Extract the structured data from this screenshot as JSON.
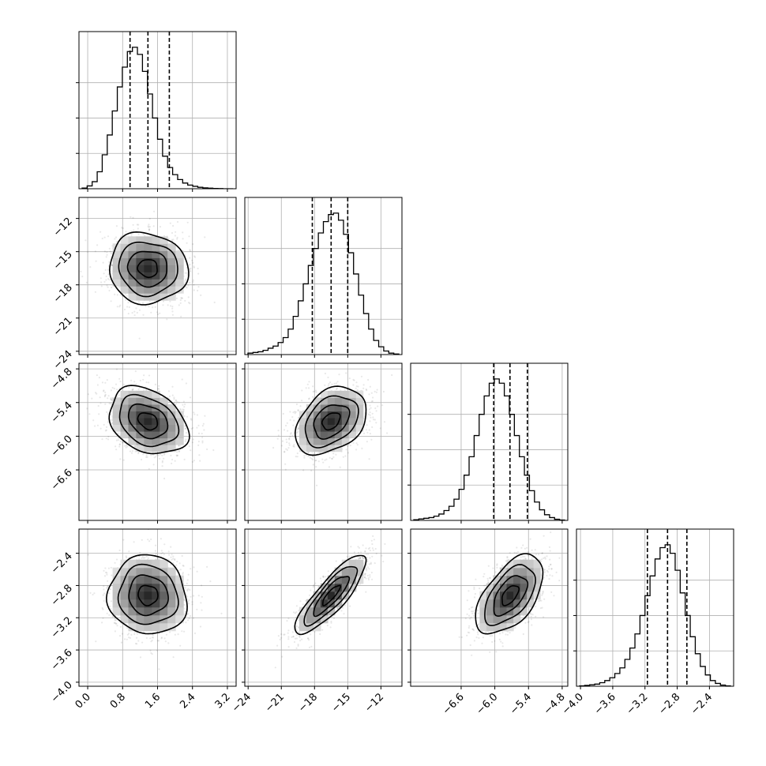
{
  "chart_data": {
    "type": "corner",
    "title": "",
    "parameter_labels": [
      "",
      "",
      "",
      ""
    ],
    "grid": true,
    "quantile_lines": "dashed",
    "parameters": [
      {
        "range": [
          -0.2,
          3.4
        ],
        "ticks": [
          "0.0",
          "0.8",
          "1.6",
          "2.4",
          "3.2"
        ],
        "tick_values": [
          0.0,
          0.8,
          1.6,
          2.4,
          3.2
        ],
        "quantiles": [
          0.97,
          1.38,
          1.87
        ],
        "histogram": [
          0.005,
          0.02,
          0.05,
          0.12,
          0.24,
          0.38,
          0.55,
          0.72,
          0.86,
          0.97,
          1.0,
          0.95,
          0.83,
          0.67,
          0.5,
          0.35,
          0.23,
          0.15,
          0.1,
          0.065,
          0.04,
          0.026,
          0.017,
          0.01,
          0.006,
          0.004,
          0.002,
          0.001,
          0.0,
          0.0
        ]
      },
      {
        "range": [
          -24.3,
          -10.1
        ],
        "ticks": [
          "-24",
          "-21",
          "-18",
          "-15",
          "-12"
        ],
        "tick_values": [
          -24,
          -21,
          -18,
          -15,
          -12
        ],
        "quantiles": [
          -18.2,
          -16.5,
          -15.0
        ],
        "histogram": [
          0.01,
          0.015,
          0.02,
          0.03,
          0.045,
          0.06,
          0.085,
          0.12,
          0.18,
          0.27,
          0.38,
          0.5,
          0.63,
          0.75,
          0.86,
          0.94,
          0.99,
          1.0,
          0.95,
          0.85,
          0.72,
          0.57,
          0.42,
          0.29,
          0.18,
          0.1,
          0.055,
          0.025,
          0.01,
          0.004
        ]
      },
      {
        "range": [
          -7.5,
          -4.7
        ],
        "ticks": [
          "-6.6",
          "-6.0",
          "-5.4",
          "-4.8"
        ],
        "tick_values": [
          -6.6,
          -6.0,
          -5.4,
          -4.8
        ],
        "quantiles": [
          -6.02,
          -5.73,
          -5.42
        ],
        "histogram": [
          0.005,
          0.01,
          0.015,
          0.02,
          0.03,
          0.045,
          0.07,
          0.1,
          0.15,
          0.22,
          0.32,
          0.45,
          0.6,
          0.75,
          0.88,
          0.97,
          1.0,
          0.97,
          0.88,
          0.75,
          0.6,
          0.45,
          0.32,
          0.21,
          0.13,
          0.075,
          0.04,
          0.02,
          0.008,
          0.003
        ]
      },
      {
        "range": [
          -4.05,
          -2.1
        ],
        "ticks": [
          "-4.0",
          "-3.6",
          "-3.2",
          "-2.8",
          "-2.4"
        ],
        "tick_values": [
          -4.0,
          -3.6,
          -3.2,
          -2.8,
          -2.4
        ],
        "quantiles": [
          -3.17,
          -2.92,
          -2.68
        ],
        "histogram": [
          0.003,
          0.006,
          0.01,
          0.015,
          0.025,
          0.04,
          0.06,
          0.09,
          0.13,
          0.19,
          0.27,
          0.37,
          0.5,
          0.64,
          0.78,
          0.9,
          0.98,
          1.0,
          0.94,
          0.82,
          0.66,
          0.5,
          0.35,
          0.23,
          0.14,
          0.08,
          0.04,
          0.02,
          0.008,
          0.003
        ]
      }
    ],
    "correlations": [
      [
        1.0,
        -0.05,
        -0.3,
        -0.05
      ],
      [
        -0.05,
        1.0,
        0.35,
        0.85
      ],
      [
        -0.3,
        0.35,
        1.0,
        0.55
      ],
      [
        -0.05,
        0.85,
        0.55,
        1.0
      ]
    ]
  }
}
